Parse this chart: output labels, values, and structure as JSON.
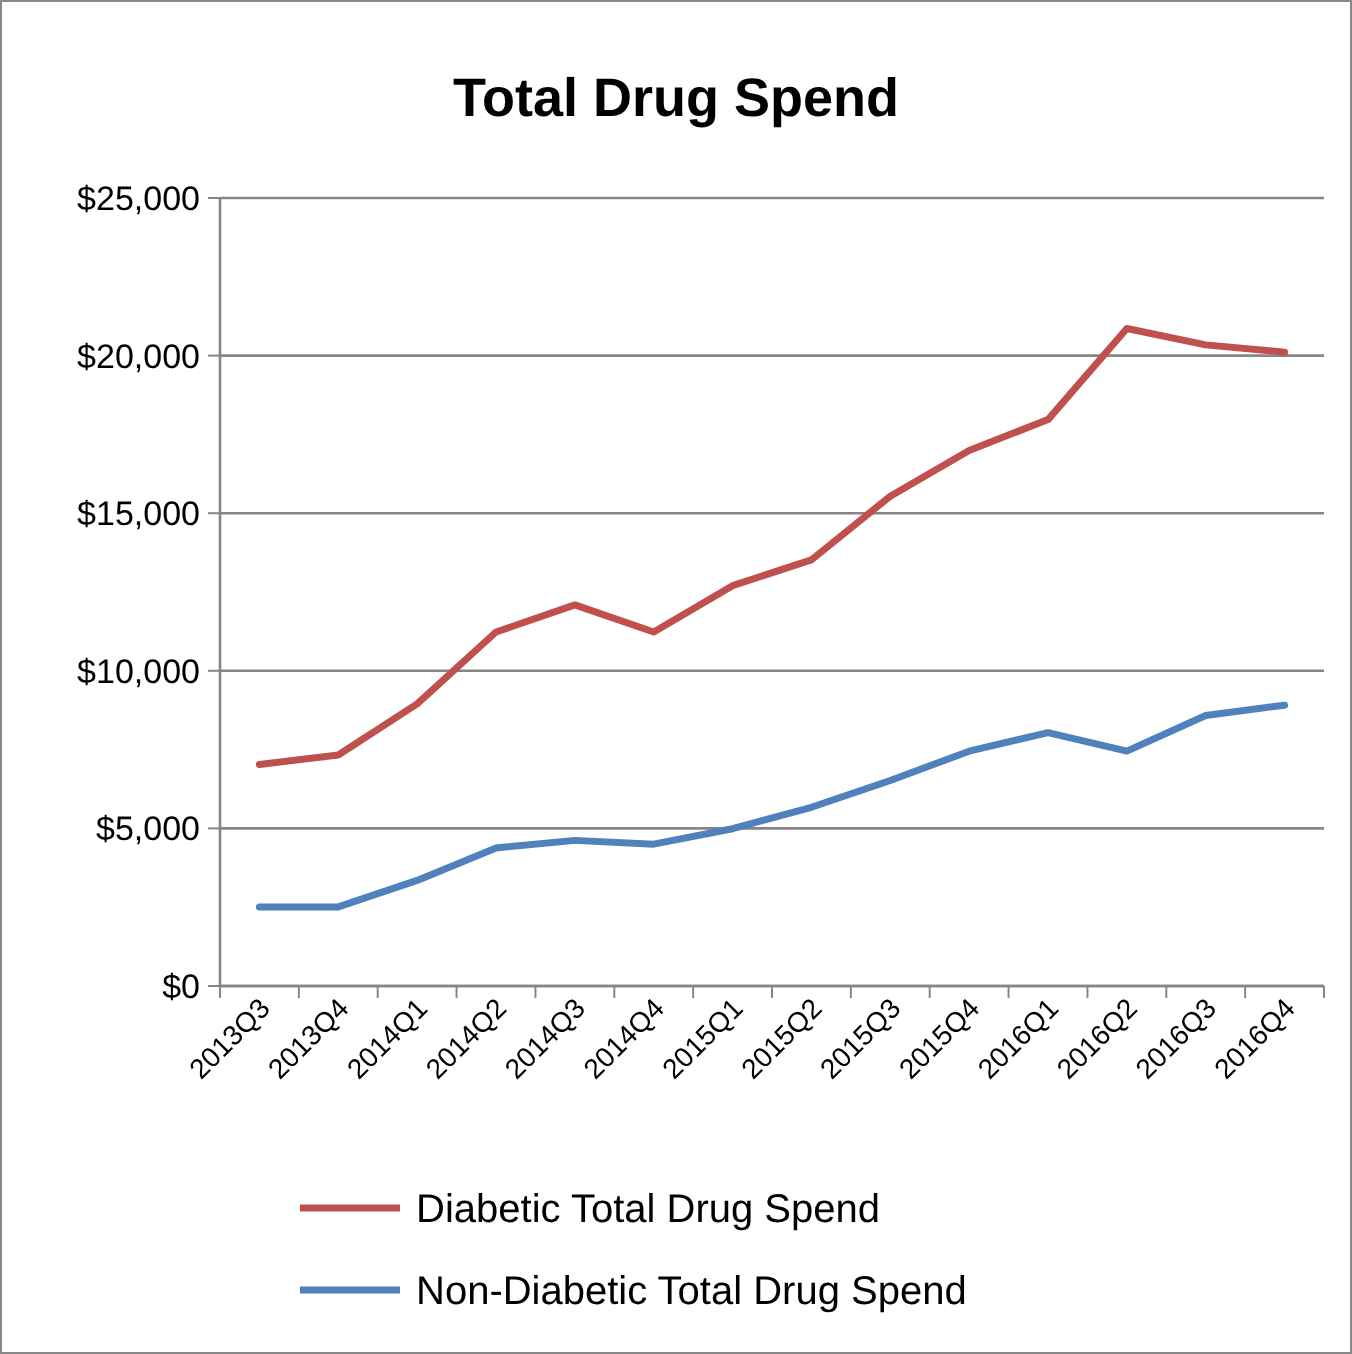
{
  "chart_data": {
    "type": "line",
    "title": "Total Drug Spend",
    "categories": [
      "2013Q3",
      "2013Q4",
      "2014Q1",
      "2014Q2",
      "2014Q3",
      "2014Q4",
      "2015Q1",
      "2015Q2",
      "2015Q3",
      "2015Q4",
      "2016Q1",
      "2016Q2",
      "2016Q3",
      "2016Q4"
    ],
    "series": [
      {
        "name": "Diabetic Total Drug Spend",
        "color": "#c0504d",
        "values": [
          7030,
          7330,
          8950,
          11230,
          12090,
          11230,
          12700,
          13520,
          15540,
          16990,
          17970,
          20860,
          20340,
          20110
        ]
      },
      {
        "name": "Non-Diabetic Total Drug Spend",
        "color": "#4f81bd",
        "values": [
          2510,
          2510,
          3350,
          4380,
          4620,
          4500,
          4990,
          5670,
          6520,
          7450,
          8040,
          7450,
          8580,
          8910
        ]
      }
    ],
    "ylim": [
      0,
      25000
    ],
    "yticks": [
      {
        "value": 0,
        "label": "$0"
      },
      {
        "value": 5000,
        "label": "$5,000"
      },
      {
        "value": 10000,
        "label": "$10,000"
      },
      {
        "value": 15000,
        "label": "$15,000"
      },
      {
        "value": 20000,
        "label": "$20,000"
      },
      {
        "value": 25000,
        "label": "$25,000"
      }
    ],
    "grid": "y",
    "legend": "bottom",
    "marker": "none",
    "line_style": "solid"
  }
}
